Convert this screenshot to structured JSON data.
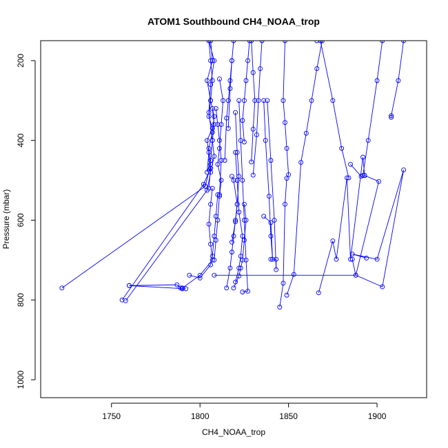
{
  "chart_data": {
    "type": "line",
    "title": "ATOM1 Southbound CH4_NOAA_trop",
    "xlabel": "CH4_NOAA_trop",
    "ylabel": "Pressure (mbar)",
    "xlim": [
      1710,
      1928
    ],
    "ylim": [
      1045,
      150
    ],
    "y_reversed": true,
    "xticks": [
      1750,
      1800,
      1850,
      1900
    ],
    "yticks": [
      200,
      400,
      600,
      800,
      1000
    ],
    "grid": false,
    "legend": "none",
    "marker": "open-circle",
    "color": "#0000ff",
    "series": [
      {
        "x": [
          1722,
          1803,
          1806,
          1804,
          1807,
          1805,
          1806,
          1804,
          1807,
          1806,
          1805,
          1808,
          1806,
          1805,
          1807,
          1806,
          1804,
          1805,
          1806,
          1805
        ],
        "y": [
          770,
          515,
          460,
          400,
          370,
          340,
          300,
          250,
          200,
          150,
          150,
          200,
          260,
          330,
          400,
          450,
          480,
          430,
          470,
          520
        ]
      },
      {
        "x": [
          1756,
          1802,
          1806,
          1805,
          1807,
          1808,
          1806,
          1807,
          1806,
          1805
        ],
        "y": [
          800,
          510,
          470,
          420,
          380,
          340,
          300,
          250,
          200,
          150
        ]
      },
      {
        "x": [
          1758,
          1804,
          1806,
          1808,
          1807,
          1808,
          1807
        ],
        "y": [
          802,
          525,
          480,
          440,
          400,
          360,
          320
        ]
      },
      {
        "x": [
          1760,
          1787,
          1789,
          1790,
          1792,
          1760
        ],
        "y": [
          764,
          762,
          770,
          772,
          772,
          764
        ]
      },
      {
        "x": [
          1790,
          1800,
          1807,
          1806,
          1805,
          1806,
          1807
        ],
        "y": [
          770,
          738,
          700,
          660,
          610,
          560,
          520
        ]
      },
      {
        "x": [
          1794,
          1800,
          1806,
          1807,
          1808,
          1809,
          1810
        ],
        "y": [
          738,
          745,
          712,
          690,
          640,
          590,
          536
        ]
      },
      {
        "x": [
          1808,
          1809,
          1810,
          1811,
          1812,
          1811,
          1810,
          1809
        ],
        "y": [
          700,
          650,
          600,
          536,
          450,
          400,
          360,
          320
        ]
      },
      {
        "x": [
          1811,
          1813,
          1812,
          1811,
          1810,
          1812,
          1811
        ],
        "y": [
          246,
          300,
          360,
          420,
          460,
          500,
          540
        ]
      },
      {
        "x": [
          1814,
          1815,
          1816,
          1817,
          1818,
          1819,
          1818,
          1817,
          1816
        ],
        "y": [
          450,
          344,
          300,
          250,
          200,
          150,
          200,
          270,
          370
        ]
      },
      {
        "x": [
          1815,
          1817,
          1818,
          1819,
          1820,
          1821,
          1819,
          1818
        ],
        "y": [
          770,
          720,
          680,
          640,
          600,
          560,
          500,
          490
        ]
      },
      {
        "x": [
          1818,
          1820,
          1821,
          1822,
          1821,
          1820
        ],
        "y": [
          655,
          604,
          560,
          490,
          430,
          330
        ]
      },
      {
        "x": [
          1820,
          1822,
          1823,
          1824,
          1822,
          1821,
          1820
        ],
        "y": [
          755,
          720,
          690,
          640,
          580,
          500,
          430
        ]
      },
      {
        "x": [
          1819,
          1822,
          1823,
          1824,
          1825,
          1826,
          1825
        ],
        "y": [
          770,
          740,
          720,
          700,
          650,
          600,
          560
        ]
      },
      {
        "x": [
          1824,
          1827,
          1826,
          1825,
          1824,
          1823,
          1822
        ],
        "y": [
          780,
          778,
          700,
          600,
          500,
          400,
          300
        ]
      },
      {
        "x": [
          1825,
          1824,
          1825,
          1826,
          1827,
          1828
        ],
        "y": [
          404,
          350,
          300,
          250,
          200,
          150
        ]
      },
      {
        "x": [
          1829,
          1830,
          1831,
          1830,
          1829
        ],
        "y": [
          454,
          372,
          300,
          230,
          150
        ]
      },
      {
        "x": [
          1830,
          1832,
          1833,
          1834,
          1835
        ],
        "y": [
          487,
          386,
          300,
          220,
          150
        ]
      },
      {
        "x": [
          1836,
          1840,
          1841,
          1840,
          1839,
          1837,
          1836
        ],
        "y": [
          590,
          606,
          698,
          640,
          540,
          400,
          300
        ]
      },
      {
        "x": [
          1840,
          1843,
          1843,
          1842,
          1840,
          1838
        ],
        "y": [
          698,
          698,
          724,
          600,
          450,
          300
        ]
      },
      {
        "x": [
          1808,
          1888,
          1901,
          1893,
          1891,
          1885
        ],
        "y": [
          738,
          738,
          503,
          488,
          490,
          460
        ]
      },
      {
        "x": [
          1845,
          1847,
          1848,
          1849,
          1850,
          1849,
          1848,
          1847,
          1848
        ],
        "y": [
          818,
          758,
          560,
          495,
          486,
          420,
          355,
          300,
          150
        ]
      },
      {
        "x": [
          1849,
          1853,
          1857,
          1860,
          1863,
          1866,
          1869,
          1866
        ],
        "y": [
          788,
          736,
          455,
          382,
          300,
          220,
          150,
          150
        ]
      },
      {
        "x": [
          1867,
          1875,
          1877,
          1883,
          1885,
          1892,
          1893
        ],
        "y": [
          782,
          652,
          698,
          494,
          698,
          442,
          488
        ]
      },
      {
        "x": [
          1886,
          1888,
          1903,
          1915,
          1900,
          1886,
          1894
        ],
        "y": [
          698,
          738,
          767,
          474,
          698,
          685,
          695
        ]
      },
      {
        "x": [
          1908,
          1908,
          1912,
          1915
        ],
        "y": [
          342,
          338,
          250,
          150
        ]
      },
      {
        "x": [
          1892,
          1895,
          1900,
          1903
        ],
        "y": [
          488,
          400,
          250,
          150
        ]
      },
      {
        "x": [
          1884,
          1880,
          1875,
          1868
        ],
        "y": [
          494,
          420,
          300,
          150
        ]
      }
    ]
  }
}
